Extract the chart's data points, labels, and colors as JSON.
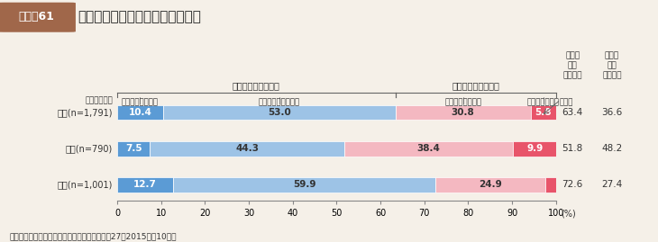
{
  "title_box_text": "図表－61",
  "title_main": "食品の選択や調理についての知識",
  "categories": [
    "総数(n=1,791)",
    "男性(n=790)",
    "女性(n=1,001)"
  ],
  "segments": [
    {
      "label": "十分にあると思う",
      "color": "#5b9bd5",
      "values": [
        10.4,
        7.5,
        12.7
      ]
    },
    {
      "label": "ある程度あると思う",
      "color": "#9dc3e6",
      "values": [
        53.0,
        44.3,
        59.9
      ]
    },
    {
      "label": "あまりないと思う",
      "color": "#f4b8c1",
      "values": [
        30.8,
        38.4,
        24.9
      ]
    },
    {
      "label": "全くないと思う",
      "color": "#e8546a",
      "values": [
        5.8,
        9.9,
        2.5
      ]
    }
  ],
  "subtotals_aru": [
    63.4,
    51.8,
    72.6
  ],
  "subtotals_nai": [
    36.6,
    48.2,
    27.4
  ],
  "source": "資料：内閣府「食育に関する意識調査」（平成27（2015）年10月）",
  "bg_color": "#f5f0e8",
  "title_box_color": "#a0674a",
  "bar_height": 0.42,
  "xticks": [
    0,
    10,
    20,
    30,
    40,
    50,
    60,
    70,
    80,
    90,
    100
  ]
}
